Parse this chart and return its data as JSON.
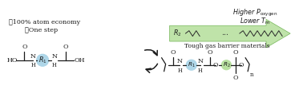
{
  "bg_color": "#ffffff",
  "check1": "✓One step",
  "check2": "✓100% atom economy",
  "right_label": "Tough gas barrier materials",
  "r1_circle_color": "#aed6e8",
  "r2_circle_color": "#b8e0a0",
  "arrow_color": "#1a1a1a",
  "bond_color": "#1a1a1a",
  "green_fill": "#b8e0a0",
  "green_edge": "#6ab04c",
  "text_color": "#1a1a1a"
}
